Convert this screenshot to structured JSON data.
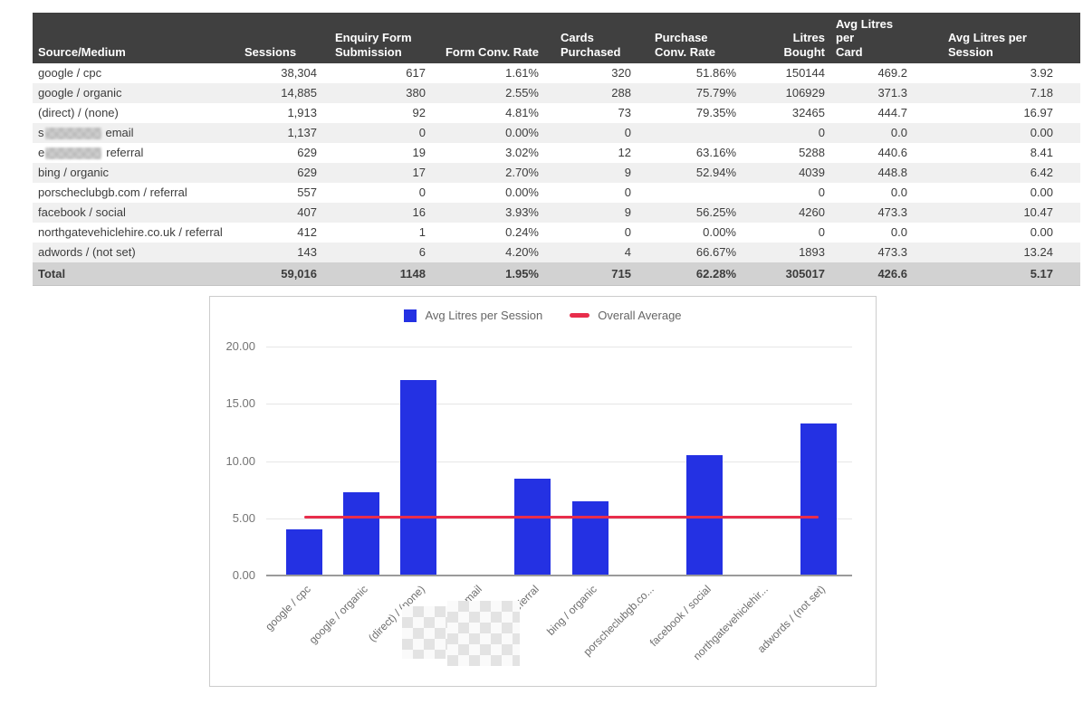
{
  "table": {
    "columns": [
      "Source/Medium",
      "Sessions",
      "Enquiry Form\nSubmission",
      "Form Conv. Rate",
      "Cards\nPurchased",
      "Purchase\nConv. Rate",
      "Litres Bought",
      "Avg Litres per\nCard",
      "Avg Litres per\nSession"
    ],
    "rows": [
      {
        "source": "google / cpc",
        "redacted": false,
        "values": [
          "38,304",
          "617",
          "1.61%",
          "320",
          "51.86%",
          "150144",
          "469.2",
          "3.92"
        ]
      },
      {
        "source": "google / organic",
        "redacted": false,
        "values": [
          "14,885",
          "380",
          "2.55%",
          "288",
          "75.79%",
          "106929",
          "371.3",
          "7.18"
        ]
      },
      {
        "source": "(direct) / (none)",
        "redacted": false,
        "values": [
          "1,913",
          "92",
          "4.81%",
          "73",
          "79.35%",
          "32465",
          "444.7",
          "16.97"
        ]
      },
      {
        "source_prefix": "s",
        "source_suffix": "email",
        "redacted": true,
        "values": [
          "1,137",
          "0",
          "0.00%",
          "0",
          "",
          "0",
          "0.0",
          "0.00"
        ]
      },
      {
        "source_prefix": "e",
        "source_suffix": "referral",
        "redacted": true,
        "values": [
          "629",
          "19",
          "3.02%",
          "12",
          "63.16%",
          "5288",
          "440.6",
          "8.41"
        ]
      },
      {
        "source": "bing / organic",
        "redacted": false,
        "values": [
          "629",
          "17",
          "2.70%",
          "9",
          "52.94%",
          "4039",
          "448.8",
          "6.42"
        ]
      },
      {
        "source": "porscheclubgb.com / referral",
        "redacted": false,
        "values": [
          "557",
          "0",
          "0.00%",
          "0",
          "",
          "0",
          "0.0",
          "0.00"
        ]
      },
      {
        "source": "facebook / social",
        "redacted": false,
        "values": [
          "407",
          "16",
          "3.93%",
          "9",
          "56.25%",
          "4260",
          "473.3",
          "10.47"
        ]
      },
      {
        "source": "northgatevehiclehire.co.uk / referral",
        "redacted": false,
        "values": [
          "412",
          "1",
          "0.24%",
          "0",
          "0.00%",
          "0",
          "0.0",
          "0.00"
        ]
      },
      {
        "source": "adwords / (not set)",
        "redacted": false,
        "values": [
          "143",
          "6",
          "4.20%",
          "4",
          "66.67%",
          "1893",
          "473.3",
          "13.24"
        ]
      }
    ],
    "total": {
      "label": "Total",
      "values": [
        "59,016",
        "1148",
        "1.95%",
        "715",
        "62.28%",
        "305017",
        "426.6",
        "5.17"
      ]
    }
  },
  "chart_data": {
    "type": "bar",
    "title": "",
    "categories": [
      "google / cpc",
      "google / organic",
      "(direct) / (none)",
      "/ email",
      "/ referral",
      "bing / organic",
      "porscheclubgb.co...",
      "facebook / social",
      "northgatevehiclehir...",
      "adwords / (not set)"
    ],
    "redacted_category_indexes": [
      3,
      4
    ],
    "series": [
      {
        "name": "Avg Litres per Session",
        "type": "bar",
        "color": "#2431e3",
        "values": [
          3.92,
          7.18,
          16.97,
          0,
          8.41,
          6.42,
          0,
          10.47,
          0,
          13.24
        ]
      },
      {
        "name": "Overall Average",
        "type": "line",
        "color": "#e82d4b",
        "value": 5.17
      }
    ],
    "xlabel": "",
    "ylabel": "",
    "ylim": [
      0,
      20
    ],
    "yticks": [
      "0.00",
      "5.00",
      "10.00",
      "15.00",
      "20.00"
    ],
    "grid": true,
    "legend_position": "top"
  },
  "colors": {
    "header_bg": "#404040",
    "header_text": "#ffffff",
    "row_alt_bg": "#f0f0f0",
    "total_bg": "#d2d2d2",
    "bar": "#2431e3",
    "avg_line": "#e82d4b"
  }
}
